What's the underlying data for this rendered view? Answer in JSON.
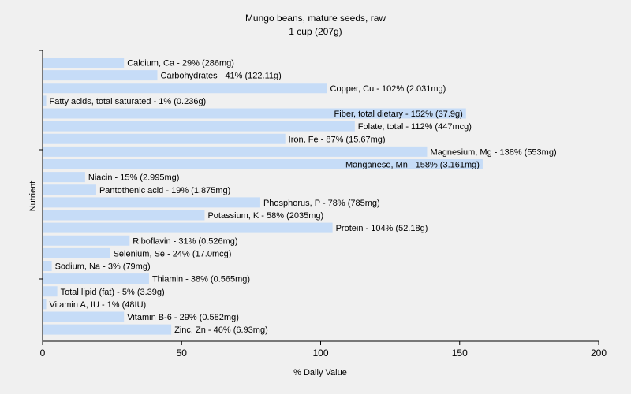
{
  "chart_data": {
    "type": "bar",
    "orientation": "horizontal",
    "title": "Mungo beans, mature seeds, raw",
    "subtitle": "1 cup (207g)",
    "xlabel": "% Daily Value",
    "ylabel": "Nutrient",
    "xlim": [
      0,
      200
    ],
    "xticks": [
      "0",
      "50",
      "100",
      "150",
      "200"
    ],
    "grid": false,
    "bar_color": "#c6dcf7",
    "categories": [
      "Calcium, Ca",
      "Carbohydrates",
      "Copper, Cu",
      "Fatty acids, total saturated",
      "Fiber, total dietary",
      "Folate, total",
      "Iron, Fe",
      "Magnesium, Mg",
      "Manganese, Mn",
      "Niacin",
      "Pantothenic acid",
      "Phosphorus, P",
      "Potassium, K",
      "Protein",
      "Riboflavin",
      "Selenium, Se",
      "Sodium, Na",
      "Thiamin",
      "Total lipid (fat)",
      "Vitamin A, IU",
      "Vitamin B-6",
      "Zinc, Zn"
    ],
    "values": [
      29,
      41,
      102,
      1,
      152,
      112,
      87,
      138,
      158,
      15,
      19,
      78,
      58,
      104,
      31,
      24,
      3,
      38,
      5,
      1,
      29,
      46
    ],
    "labels": [
      "Calcium, Ca - 29% (286mg)",
      "Carbohydrates - 41% (122.11g)",
      "Copper, Cu - 102% (2.031mg)",
      "Fatty acids, total saturated - 1% (0.236g)",
      "Fiber, total dietary - 152% (37.9g)",
      "Folate, total - 112% (447mcg)",
      "Iron, Fe - 87% (15.67mg)",
      "Magnesium, Mg - 138% (553mg)",
      "Manganese, Mn - 158% (3.161mg)",
      "Niacin - 15% (2.995mg)",
      "Pantothenic acid - 19% (1.875mg)",
      "Phosphorus, P - 78% (785mg)",
      "Potassium, K - 58% (2035mg)",
      "Protein - 104% (52.18g)",
      "Riboflavin - 31% (0.526mg)",
      "Selenium, Se - 24% (17.0mcg)",
      "Sodium, Na - 3% (79mg)",
      "Thiamin - 38% (0.565mg)",
      "Total lipid (fat) - 5% (3.39g)",
      "Vitamin A, IU - 1% (48IU)",
      "Vitamin B-6 - 29% (0.582mg)",
      "Zinc, Zn - 46% (6.93mg)"
    ]
  }
}
